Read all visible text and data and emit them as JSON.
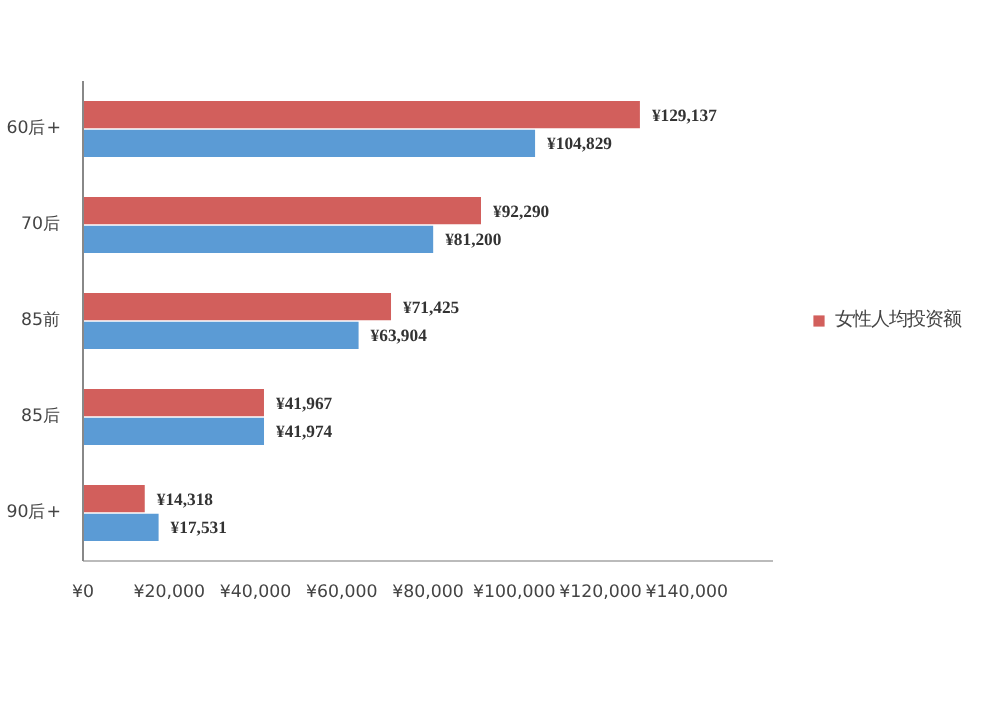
{
  "chart_data": {
    "type": "bar",
    "orientation": "horizontal",
    "categories": [
      "60后+",
      "70后",
      "85前",
      "85后",
      "90后+"
    ],
    "series": [
      {
        "name": "女性人均投资额",
        "color": "#d25f5c",
        "values": [
          129137,
          92290,
          71425,
          41967,
          14318
        ],
        "value_labels": [
          "¥129,137",
          "¥92,290",
          "¥71,425",
          "¥41,967",
          "¥14,318"
        ]
      },
      {
        "color": "#5b9bd5",
        "values": [
          104829,
          81200,
          63904,
          41974,
          17531
        ],
        "value_labels": [
          "¥104,829",
          "¥81,200",
          "¥63,904",
          "¥41,974",
          "¥17,531"
        ]
      }
    ],
    "xlim": [
      0,
      160000
    ],
    "xticks": [
      {
        "value": 0,
        "label": "¥0"
      },
      {
        "value": 20000,
        "label": "¥20,000"
      },
      {
        "value": 40000,
        "label": "¥40,000"
      },
      {
        "value": 60000,
        "label": "¥60,000"
      },
      {
        "value": 80000,
        "label": "¥80,000"
      },
      {
        "value": 100000,
        "label": "¥100,000"
      },
      {
        "value": 120000,
        "label": "¥120,000"
      },
      {
        "value": 140000,
        "label": "¥140,000"
      }
    ],
    "legend": "right",
    "grid": false
  }
}
